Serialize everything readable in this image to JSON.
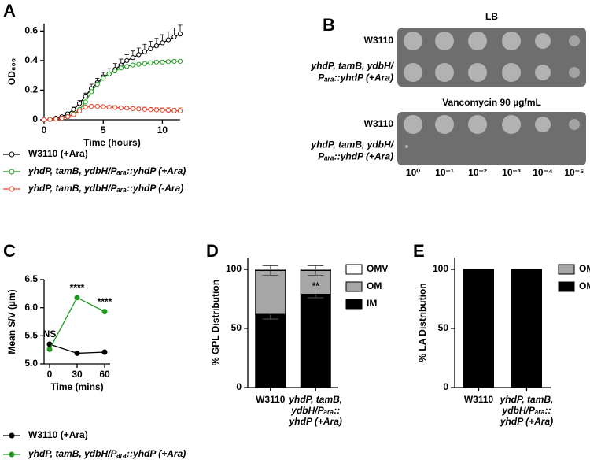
{
  "chart_data": [
    {
      "type": "line",
      "panel_label": "A",
      "x_label": "Time (hours)",
      "y_label": "OD₆₀₀",
      "marker": "open",
      "x": [
        0,
        0.5,
        1,
        1.5,
        2,
        2.5,
        3,
        3.5,
        4,
        4.5,
        5,
        5.5,
        6,
        6.5,
        7,
        7.5,
        8,
        8.5,
        9,
        9.5,
        10,
        10.5,
        11,
        11.5
      ],
      "xlim": [
        0,
        11.5
      ],
      "xticks": [
        0,
        5,
        10
      ],
      "ylim": [
        0,
        0.65
      ],
      "yticks": [
        0,
        0.2,
        0.4,
        0.6
      ],
      "series": [
        {
          "name": "W3110 (+Ara)",
          "color": "#000000",
          "values": [
            0,
            0.003,
            0.01,
            0.02,
            0.04,
            0.07,
            0.11,
            0.16,
            0.21,
            0.25,
            0.29,
            0.31,
            0.34,
            0.37,
            0.4,
            0.42,
            0.44,
            0.46,
            0.48,
            0.5,
            0.52,
            0.54,
            0.56,
            0.58
          ],
          "errors": [
            0.005,
            0.005,
            0.005,
            0.01,
            0.01,
            0.015,
            0.02,
            0.02,
            0.03,
            0.03,
            0.03,
            0.035,
            0.04,
            0.04,
            0.04,
            0.045,
            0.045,
            0.05,
            0.05,
            0.05,
            0.055,
            0.055,
            0.06,
            0.06
          ]
        },
        {
          "name": "yhdP, tamB, ydbH/Pₐᵣₐ::yhdP (+Ara)",
          "color": "#1e9a1e",
          "values": [
            0,
            0.002,
            0.005,
            0.01,
            0.02,
            0.04,
            0.07,
            0.12,
            0.19,
            0.24,
            0.28,
            0.31,
            0.33,
            0.35,
            0.36,
            0.37,
            0.375,
            0.38,
            0.385,
            0.39,
            0.39,
            0.393,
            0.395,
            0.395
          ],
          "errors": [
            0.003,
            0.003,
            0.003,
            0.004,
            0.005,
            0.006,
            0.008,
            0.01,
            0.01,
            0.01,
            0.01,
            0.01,
            0.01,
            0.01,
            0.01,
            0.008,
            0.008,
            0.008,
            0.008,
            0.008,
            0.008,
            0.008,
            0.008,
            0.008
          ]
        },
        {
          "name": "yhdP, tamB, ydbH/Pₐᵣₐ::yhdP (-Ara)",
          "color": "#e8432a",
          "values": [
            0,
            0.002,
            0.005,
            0.01,
            0.02,
            0.035,
            0.06,
            0.085,
            0.09,
            0.09,
            0.088,
            0.085,
            0.083,
            0.08,
            0.078,
            0.075,
            0.073,
            0.07,
            0.068,
            0.066,
            0.065,
            0.063,
            0.06,
            0.06
          ],
          "errors": [
            0.003,
            0.003,
            0.003,
            0.004,
            0.005,
            0.006,
            0.008,
            0.01,
            0.01,
            0.01,
            0.01,
            0.01,
            0.01,
            0.01,
            0.012,
            0.012,
            0.012,
            0.015,
            0.015,
            0.015,
            0.015,
            0.018,
            0.018,
            0.02
          ]
        }
      ]
    },
    {
      "type": "line",
      "panel_label": "C",
      "x_label": "Time (mins)",
      "y_label": "Mean S/V (µm)",
      "marker": "filled",
      "x": [
        0,
        30,
        60
      ],
      "xlim": [
        -6,
        66
      ],
      "xticks": [
        0,
        30,
        60
      ],
      "ylim": [
        5,
        6.5
      ],
      "yticks": [
        {
          "value": 5,
          "label": "5.0"
        },
        5.5,
        {
          "value": 6,
          "label": "6.0"
        },
        6.5
      ],
      "annotations": [
        "NS",
        "****",
        "****"
      ],
      "series": [
        {
          "name": "W3110 (+Ara)",
          "color": "#000000",
          "values": [
            5.35,
            5.19,
            5.21
          ]
        },
        {
          "name": "yhdP, tamB, ydbH/Pₐᵣₐ::yhdP (+Ara)",
          "color": "#1e9a1e",
          "values": [
            5.26,
            6.18,
            5.93
          ]
        }
      ]
    },
    {
      "type": "stacked_bar",
      "panel_label": "D",
      "y_label": "% GPL Distribution",
      "categories": [
        [
          "W3110"
        ],
        [
          "yhdP, tamB,",
          "ydbH/Pₐᵣₐ::",
          "yhdP (+Ara)"
        ]
      ],
      "ylim": [
        0,
        110
      ],
      "yticks": [
        0,
        50,
        100
      ],
      "annotations": [
        null,
        "**"
      ],
      "series": [
        {
          "name": "IM",
          "color": "#000000",
          "values": [
            62,
            79
          ],
          "errors": [
            4,
            3
          ]
        },
        {
          "name": "OM",
          "color": "#a6a6a6",
          "values": [
            37,
            20
          ],
          "errors": [
            4,
            4
          ]
        },
        {
          "name": "OMV",
          "color": "#ffffff",
          "values": [
            1,
            1
          ]
        }
      ]
    },
    {
      "type": "stacked_bar",
      "panel_label": "E",
      "y_label": "% LA Distribution",
      "categories": [
        [
          "W3110"
        ],
        [
          "yhdP, tamB,",
          "ydbH/Pₐᵣₐ::",
          "yhdP (+Ara)"
        ]
      ],
      "ylim": [
        0,
        110
      ],
      "yticks": [
        0,
        50,
        100
      ],
      "series": [
        {
          "name": "OM",
          "color": "#000000",
          "values": [
            99.5,
            99.5
          ]
        },
        {
          "name": "OMV",
          "color": "#a6a6a6",
          "values": [
            0.5,
            0.5
          ]
        }
      ]
    }
  ],
  "panel_b": {
    "panel_label": "B",
    "plates": [
      {
        "title": "LB",
        "rows": [
          [
            "W3110"
          ],
          [
            "yhdP, tamB, ydbH/",
            "Pₐᵣₐ::yhdP (+Ara)"
          ]
        ]
      },
      {
        "title": "Vancomycin 90 µg/mL",
        "rows": [
          [
            "W3110"
          ],
          [
            "yhdP, tamB, ydbH/",
            "Pₐᵣₐ::yhdP (+Ara)"
          ]
        ]
      }
    ],
    "dilutions": [
      "10⁰",
      "10⁻¹",
      "10⁻²",
      "10⁻³",
      "10⁻⁴",
      "10⁻⁵"
    ]
  }
}
